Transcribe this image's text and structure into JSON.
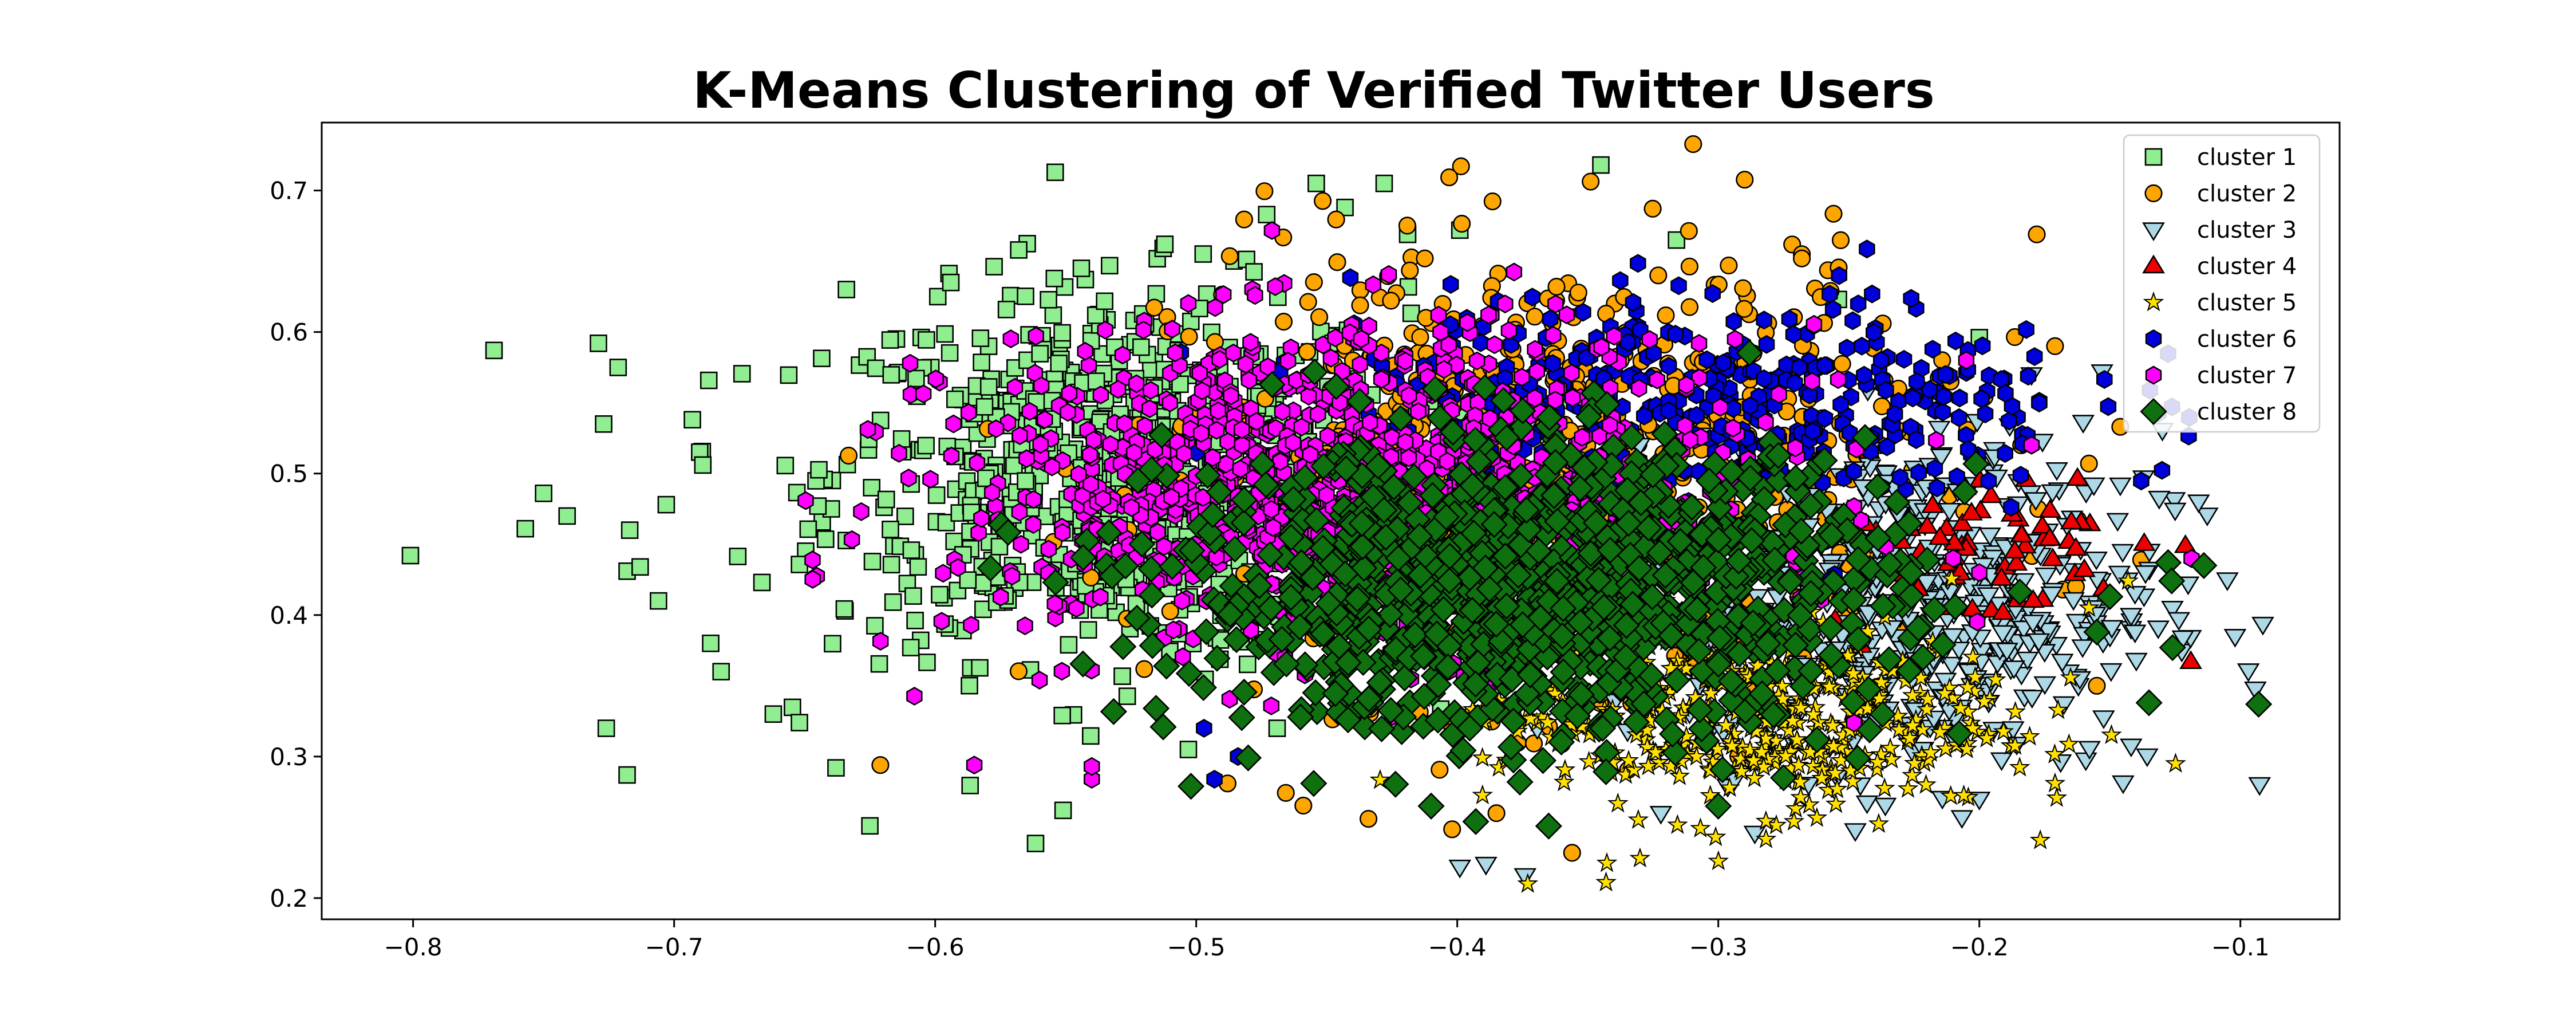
{
  "chart_data": {
    "type": "scatter",
    "title": "K-Means Clustering of Verified Twitter Users",
    "xlabel": "",
    "ylabel": "",
    "xlim": [
      -0.835,
      -0.062
    ],
    "ylim": [
      0.185,
      0.748
    ],
    "x_ticks": [
      -0.8,
      -0.7,
      -0.6,
      -0.5,
      -0.4,
      -0.3,
      -0.2,
      -0.1
    ],
    "x_tick_labels": [
      "−0.8",
      "−0.7",
      "−0.6",
      "−0.5",
      "−0.4",
      "−0.3",
      "−0.2",
      "−0.1"
    ],
    "y_ticks": [
      0.2,
      0.3,
      0.4,
      0.5,
      0.6,
      0.7
    ],
    "y_tick_labels": [
      "0.2",
      "0.3",
      "0.4",
      "0.5",
      "0.6",
      "0.7"
    ],
    "grid": false,
    "legend_position": "top-right",
    "series": [
      {
        "name": "cluster 1",
        "marker": "square",
        "color": "#90ee90",
        "center": [
          -0.53,
          0.5
        ],
        "spread": [
          0.055,
          0.065
        ],
        "count": 750,
        "points": [
          [
            -0.801,
            0.442
          ],
          [
            -0.769,
            0.587
          ],
          [
            -0.757,
            0.461
          ],
          [
            -0.75,
            0.486
          ],
          [
            -0.741,
            0.47
          ],
          [
            -0.729,
            0.592
          ],
          [
            -0.727,
            0.535
          ],
          [
            -0.726,
            0.32
          ],
          [
            -0.718,
            0.287
          ],
          [
            -0.718,
            0.431
          ],
          [
            -0.717,
            0.46
          ],
          [
            -0.713,
            0.434
          ],
          [
            -0.706,
            0.41
          ],
          [
            -0.703,
            0.478
          ],
          [
            -0.693,
            0.538
          ],
          [
            -0.689,
            0.506
          ],
          [
            -0.686,
            0.38
          ],
          [
            -0.682,
            0.36
          ],
          [
            -0.662,
            0.33
          ],
          [
            -0.652,
            0.324
          ],
          [
            -0.638,
            0.292
          ],
          [
            -0.634,
            0.63
          ],
          [
            -0.625,
            0.251
          ],
          [
            -0.599,
            0.625
          ],
          [
            -0.594,
            0.635
          ],
          [
            -0.568,
            0.658
          ],
          [
            -0.551,
            0.262
          ],
          [
            -0.544,
            0.645
          ],
          [
            -0.512,
            0.662
          ],
          [
            -0.503,
            0.305
          ],
          [
            -0.473,
            0.683
          ],
          [
            -0.469,
            0.32
          ],
          [
            -0.454,
            0.705
          ],
          [
            -0.443,
            0.688
          ],
          [
            -0.428,
            0.705
          ],
          [
            -0.419,
            0.669
          ],
          [
            -0.399,
            0.672
          ],
          [
            -0.345,
            0.718
          ],
          [
            -0.316,
            0.665
          ],
          [
            -0.254,
            0.623
          ],
          [
            -0.2,
            0.596
          ]
        ]
      },
      {
        "name": "cluster 2",
        "marker": "circle",
        "color": "#ffa500",
        "center": [
          -0.37,
          0.5
        ],
        "spread": [
          0.07,
          0.08
        ],
        "count": 650,
        "points": [
          [
            -0.621,
            0.294
          ],
          [
            -0.488,
            0.281
          ],
          [
            -0.434,
            0.256
          ],
          [
            -0.412,
            0.61
          ],
          [
            -0.385,
            0.26
          ],
          [
            -0.362,
            0.632
          ],
          [
            -0.356,
            0.232
          ],
          [
            -0.323,
            0.64
          ],
          [
            -0.296,
            0.647
          ],
          [
            -0.268,
            0.655
          ],
          [
            -0.268,
            0.652
          ],
          [
            -0.257,
            0.629
          ],
          [
            -0.237,
            0.606
          ],
          [
            -0.231,
            0.56
          ],
          [
            -0.211,
            0.565
          ],
          [
            -0.198,
            0.554
          ],
          [
            -0.184,
            0.52
          ],
          [
            -0.178,
            0.669
          ],
          [
            -0.171,
            0.59
          ],
          [
            -0.168,
            0.418
          ],
          [
            -0.163,
            0.42
          ],
          [
            -0.158,
            0.507
          ],
          [
            -0.155,
            0.35
          ],
          [
            -0.146,
            0.533
          ],
          [
            -0.138,
            0.439
          ]
        ]
      },
      {
        "name": "cluster 3",
        "marker": "triangle-down",
        "color": "#add8e6",
        "center": [
          -0.22,
          0.41
        ],
        "spread": [
          0.045,
          0.06
        ],
        "count": 500,
        "points": [
          [
            -0.399,
            0.222
          ],
          [
            -0.389,
            0.224
          ],
          [
            -0.374,
            0.216
          ],
          [
            -0.322,
            0.26
          ],
          [
            -0.286,
            0.246
          ],
          [
            -0.2,
            0.27
          ],
          [
            -0.18,
            0.57
          ],
          [
            -0.153,
            0.572
          ],
          [
            -0.146,
            0.492
          ],
          [
            -0.116,
            0.48
          ],
          [
            -0.122,
            0.384
          ],
          [
            -0.105,
            0.425
          ]
        ]
      },
      {
        "name": "cluster 4",
        "marker": "triangle-up",
        "color": "#ee0000",
        "center": [
          -0.2,
          0.45
        ],
        "spread": [
          0.03,
          0.03
        ],
        "count": 60,
        "points": [
          [
            -0.119,
            0.367
          ],
          [
            -0.163,
            0.447
          ],
          [
            -0.173,
            0.454
          ],
          [
            -0.203,
            0.472
          ]
        ]
      },
      {
        "name": "cluster 5",
        "marker": "star",
        "color": "#ffe000",
        "center": [
          -0.29,
          0.33
        ],
        "spread": [
          0.05,
          0.035
        ],
        "count": 450,
        "points": [
          [
            -0.373,
            0.21
          ],
          [
            -0.343,
            0.211
          ],
          [
            -0.33,
            0.228
          ],
          [
            -0.301,
            0.243
          ],
          [
            -0.271,
            0.254
          ],
          [
            -0.171,
            0.281
          ],
          [
            -0.158,
            0.405
          ],
          [
            -0.143,
            0.424
          ]
        ]
      },
      {
        "name": "cluster 6",
        "marker": "hexagon",
        "color": "#0000dd",
        "center": [
          -0.3,
          0.55
        ],
        "spread": [
          0.07,
          0.04
        ],
        "count": 400,
        "points": [
          [
            -0.497,
            0.32
          ],
          [
            -0.493,
            0.284
          ],
          [
            -0.484,
            0.3
          ],
          [
            -0.245,
            0.59
          ],
          [
            -0.224,
            0.565
          ],
          [
            -0.213,
            0.57
          ]
        ]
      },
      {
        "name": "cluster 7",
        "marker": "hexagon",
        "color": "#ff00ff",
        "center": [
          -0.44,
          0.49
        ],
        "spread": [
          0.075,
          0.055
        ],
        "count": 1100,
        "points": [
          [
            -0.585,
            0.294
          ],
          [
            -0.56,
            0.354
          ],
          [
            -0.54,
            0.284
          ],
          [
            -0.54,
            0.293
          ],
          [
            -0.205,
            0.58
          ],
          [
            -0.21,
            0.44
          ],
          [
            -0.2,
            0.43
          ],
          [
            -0.18,
            0.52
          ]
        ]
      },
      {
        "name": "cluster 8",
        "marker": "diamond",
        "color": "#0e700e",
        "center": [
          -0.37,
          0.42
        ],
        "spread": [
          0.068,
          0.05
        ],
        "count": 1200,
        "points": [
          [
            -0.502,
            0.279
          ],
          [
            -0.455,
            0.281
          ],
          [
            -0.41,
            0.265
          ],
          [
            -0.376,
            0.282
          ],
          [
            -0.3,
            0.265
          ],
          [
            -0.275,
            0.285
          ],
          [
            -0.155,
            0.388
          ],
          [
            -0.15,
            0.413
          ],
          [
            -0.135,
            0.338
          ],
          [
            -0.126,
            0.377
          ],
          [
            -0.114,
            0.435
          ],
          [
            -0.093,
            0.337
          ]
        ]
      }
    ]
  }
}
